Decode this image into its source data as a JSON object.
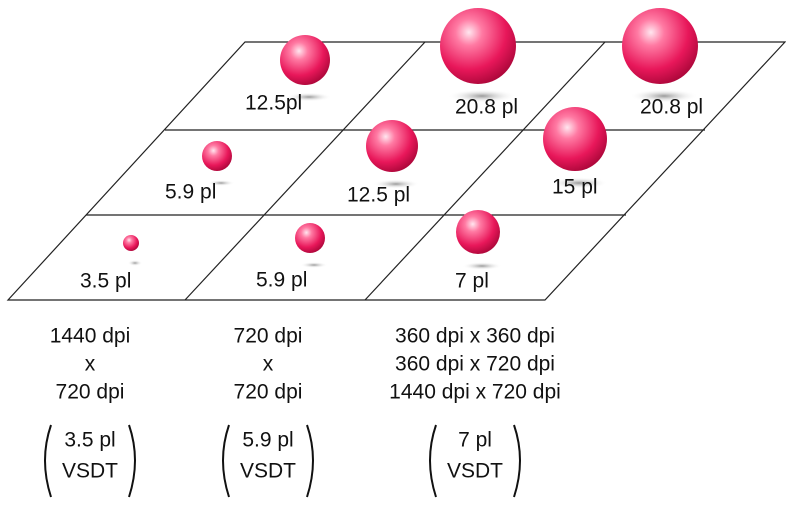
{
  "cells": [
    {
      "label": "12.5pl"
    },
    {
      "label": "20.8 pl"
    },
    {
      "label": "20.8 pl"
    },
    {
      "label": "5.9 pl"
    },
    {
      "label": "12.5 pl"
    },
    {
      "label": "15 pl"
    },
    {
      "label": "3.5 pl"
    },
    {
      "label": "5.9 pl"
    },
    {
      "label": "7 pl"
    }
  ],
  "columns": [
    {
      "resolution": [
        "1440 dpi",
        "x",
        "720 dpi"
      ],
      "note": [
        "3.5 pl",
        "VSDT"
      ]
    },
    {
      "resolution": [
        "720 dpi",
        "x",
        "720 dpi"
      ],
      "note": [
        "5.9 pl",
        "VSDT"
      ]
    },
    {
      "resolution": [
        "360 dpi x 360 dpi",
        "360 dpi x 720 dpi",
        "1440 dpi x 720 dpi"
      ],
      "note": [
        "7 pl",
        "VSDT"
      ]
    }
  ]
}
